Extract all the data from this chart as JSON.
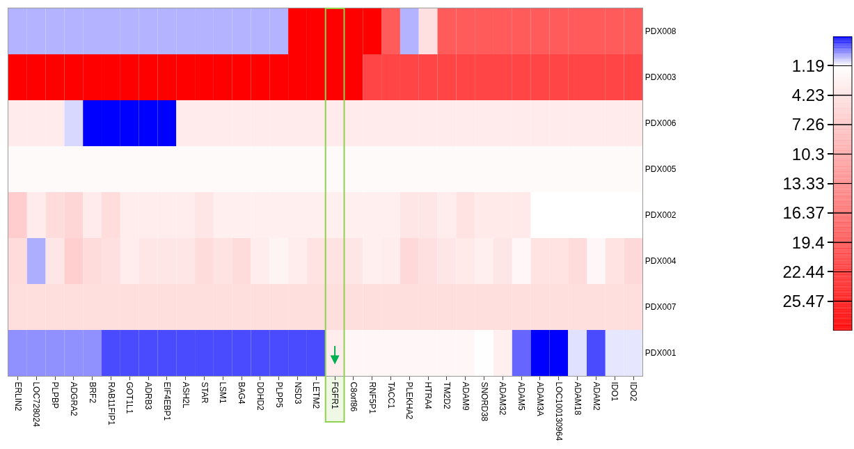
{
  "chart_data": {
    "type": "heatmap",
    "categories": [
      "ERLIN2",
      "LOC728024",
      "PLPBP",
      "ADGRA2",
      "BRF2",
      "RAB11FIP1",
      "GOT1L1",
      "ADRB3",
      "EIF4EBP1",
      "ASH2L",
      "STAR",
      "LSM1",
      "BAG4",
      "DDHD2",
      "PLPP5",
      "NSD3",
      "LETM2",
      "FGFR1",
      "C8orf86",
      "RNF5P1",
      "TACC1",
      "PLEKHA2",
      "HTRA4",
      "TM2D2",
      "ADAM9",
      "SNORD38",
      "ADAM32",
      "ADAM5",
      "ADAM3A",
      "LOC100130964",
      "ADAM18",
      "ADAM2",
      "IDO1",
      "IDO2"
    ],
    "y_categories": [
      "PDX008",
      "PDX003",
      "PDX006",
      "PDX005",
      "PDX002",
      "PDX004",
      "PDX007",
      "PDX001"
    ],
    "cells": [
      [
        0.28,
        0.28,
        0.28,
        0.28,
        0.28,
        0.28,
        0.28,
        0.28,
        0.28,
        0.28,
        0.28,
        0.28,
        0.28,
        0.28,
        0.28,
        28.5,
        28.5,
        28.5,
        28.5,
        28.5,
        18.8,
        0.28,
        4.5,
        18.8,
        18.8,
        18.8,
        18.8,
        18.8,
        18.8,
        18.8,
        18.8,
        18.8,
        18.8,
        18.8
      ],
      [
        28.5,
        28.5,
        28.5,
        28.5,
        28.5,
        28.5,
        28.5,
        28.5,
        28.5,
        28.5,
        28.5,
        28.5,
        28.5,
        28.5,
        28.5,
        28.5,
        28.5,
        28.5,
        28.5,
        21.1,
        21.1,
        21.1,
        21.1,
        21.1,
        21.1,
        21.1,
        21.1,
        21.1,
        21.1,
        21.1,
        21.1,
        21.1,
        21.1,
        21.1
      ],
      [
        3.3,
        3.3,
        3.3,
        0.72,
        -1.85,
        -1.85,
        -1.85,
        -1.85,
        -1.85,
        3.3,
        3.3,
        3.3,
        3.3,
        3.3,
        3.3,
        3.3,
        3.3,
        3.3,
        3.3,
        3.3,
        3.3,
        3.3,
        3.3,
        3.3,
        3.3,
        3.3,
        3.3,
        3.3,
        3.3,
        3.3,
        3.3,
        3.3,
        3.3,
        3.3
      ],
      [
        1.7,
        1.7,
        1.7,
        1.7,
        1.7,
        1.7,
        1.7,
        1.7,
        1.7,
        1.7,
        1.7,
        1.7,
        1.7,
        1.7,
        1.7,
        1.7,
        1.7,
        1.7,
        1.7,
        1.7,
        1.7,
        1.7,
        1.7,
        1.7,
        1.7,
        1.7,
        1.7,
        1.7,
        1.7,
        1.7,
        1.7,
        1.7,
        1.7,
        1.7
      ],
      [
        6.6,
        3.3,
        4.9,
        5.6,
        3.3,
        4.8,
        3.1,
        3.1,
        3.1,
        3.1,
        3.9,
        2.9,
        2.9,
        2.9,
        2.9,
        2.9,
        2.9,
        2.9,
        2.9,
        2.9,
        2.9,
        3.9,
        3.9,
        3.1,
        4.3,
        3.5,
        3.5,
        3.5,
        1.19,
        1.19,
        1.19,
        1.19,
        1.19,
        1.19
      ],
      [
        4.9,
        0.22,
        3.9,
        6.3,
        4.9,
        4.5,
        3.1,
        3.9,
        3.9,
        3.9,
        4.9,
        4.3,
        4.9,
        3.1,
        2.4,
        3.1,
        4.3,
        4.3,
        3.9,
        2.9,
        3.1,
        5.3,
        4.5,
        3.9,
        3.5,
        2.9,
        3.9,
        2.0,
        4.2,
        4.2,
        4.9,
        2.0,
        4.3,
        5.3
      ],
      [
        4.7,
        4.7,
        4.7,
        4.7,
        4.7,
        4.7,
        4.7,
        4.7,
        4.7,
        4.7,
        4.7,
        4.7,
        4.7,
        4.7,
        4.7,
        4.7,
        4.7,
        4.7,
        4.7,
        4.7,
        4.7,
        4.7,
        4.7,
        4.7,
        4.7,
        4.7,
        4.7,
        4.7,
        4.7,
        4.7,
        4.7,
        4.7,
        4.7,
        4.7
      ],
      [
        -0.13,
        -0.13,
        -0.13,
        -0.13,
        -0.13,
        -0.97,
        -0.97,
        -0.97,
        -0.97,
        -0.97,
        -0.97,
        -0.97,
        -0.97,
        -0.97,
        -0.97,
        -0.97,
        -0.97,
        3.1,
        2.0,
        2.0,
        2.0,
        2.0,
        2.0,
        2.0,
        2.0,
        1.3,
        2.9,
        -0.63,
        -1.85,
        -1.85,
        0.82,
        -0.97,
        0.89,
        0.89
      ]
    ],
    "clim": [
      -1.85,
      28.51
    ],
    "cticks": [
      1.19,
      4.23,
      7.26,
      10.3,
      13.33,
      16.37,
      19.4,
      22.44,
      25.47
    ],
    "bands": [
      {
        "axis": "x",
        "from": "FGFR1",
        "to": "FGFR1",
        "color": "#8fd14f"
      }
    ]
  }
}
